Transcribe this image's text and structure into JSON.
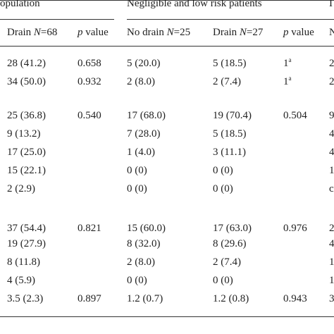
{
  "header": {
    "group_all": "opulation",
    "group_low": "Negligible and low risk patients",
    "group_cut": "I",
    "col_drain_all": {
      "label": "Drain ",
      "n_label": "N",
      "n_value": "=68"
    },
    "col_p_all": {
      "p": "p",
      "rest": " value"
    },
    "col_nodrain_low": {
      "label": "No drain ",
      "n_label": "N",
      "n_value": "=25"
    },
    "col_drain_low": {
      "label": "Drain ",
      "n_label": "N",
      "n_value": "=27"
    },
    "col_p_low": {
      "p": "p",
      "rest": " value"
    },
    "col_cut": "N"
  },
  "rows": [
    {
      "c1": "28 (41.2)",
      "c2": "0.658",
      "c3": "5 (20.0)",
      "c4": "5 (18.5)",
      "c5": "1",
      "c5_sup": "a",
      "c6": "2"
    },
    {
      "c1": "34 (50.0)",
      "c2": "0.932",
      "c3": "2 (8.0)",
      "c4": "2 (7.4)",
      "c5": "1",
      "c5_sup": "a",
      "c6": "2"
    },
    {
      "c1": "25 (36.8)",
      "c2": "0.540",
      "c3": "17 (68.0)",
      "c4": "19 (70.4)",
      "c5": "0.504",
      "c5_sup": "",
      "c6": "9"
    },
    {
      "c1": "9 (13.2)",
      "c2": "",
      "c3": "7 (28.0)",
      "c4": "5 (18.5)",
      "c5": "",
      "c5_sup": "",
      "c6": "4"
    },
    {
      "c1": "17 (25.0)",
      "c2": "",
      "c3": "1 (4.0)",
      "c4": "3 (11.1)",
      "c5": "",
      "c5_sup": "",
      "c6": "4"
    },
    {
      "c1": "15 (22.1)",
      "c2": "",
      "c3": "0 (0)",
      "c4": "0 (0)",
      "c5": "",
      "c5_sup": "",
      "c6": "1"
    },
    {
      "c1": "2 (2.9)",
      "c2": "",
      "c3": "0 (0)",
      "c4": "0 (0)",
      "c5": "",
      "c5_sup": "",
      "c6": "c"
    },
    {
      "c1": "37 (54.4)",
      "c2": "0.821",
      "c3": "15 (60.0)",
      "c4": "17 (63.0)",
      "c5": "0.976",
      "c5_sup": "",
      "c6": "2"
    },
    {
      "c1": "19 (27.9)",
      "c2": "",
      "c3": "8 (32.0)",
      "c4": "8 (29.6)",
      "c5": "",
      "c5_sup": "",
      "c6": "4"
    },
    {
      "c1": "8 (11.8)",
      "c2": "",
      "c3": "2 (8.0)",
      "c4": "2 (7.4)",
      "c5": "",
      "c5_sup": "",
      "c6": "1"
    },
    {
      "c1": "4 (5.9)",
      "c2": "",
      "c3": "0 (0)",
      "c4": "0 (0)",
      "c5": "",
      "c5_sup": "",
      "c6": "1"
    },
    {
      "c1": "3.5 (2.3)",
      "c2": "0.897",
      "c3": "1.2 (0.7)",
      "c4": "1.2 (0.8)",
      "c5": "0.943",
      "c5_sup": "",
      "c6": "3"
    }
  ]
}
